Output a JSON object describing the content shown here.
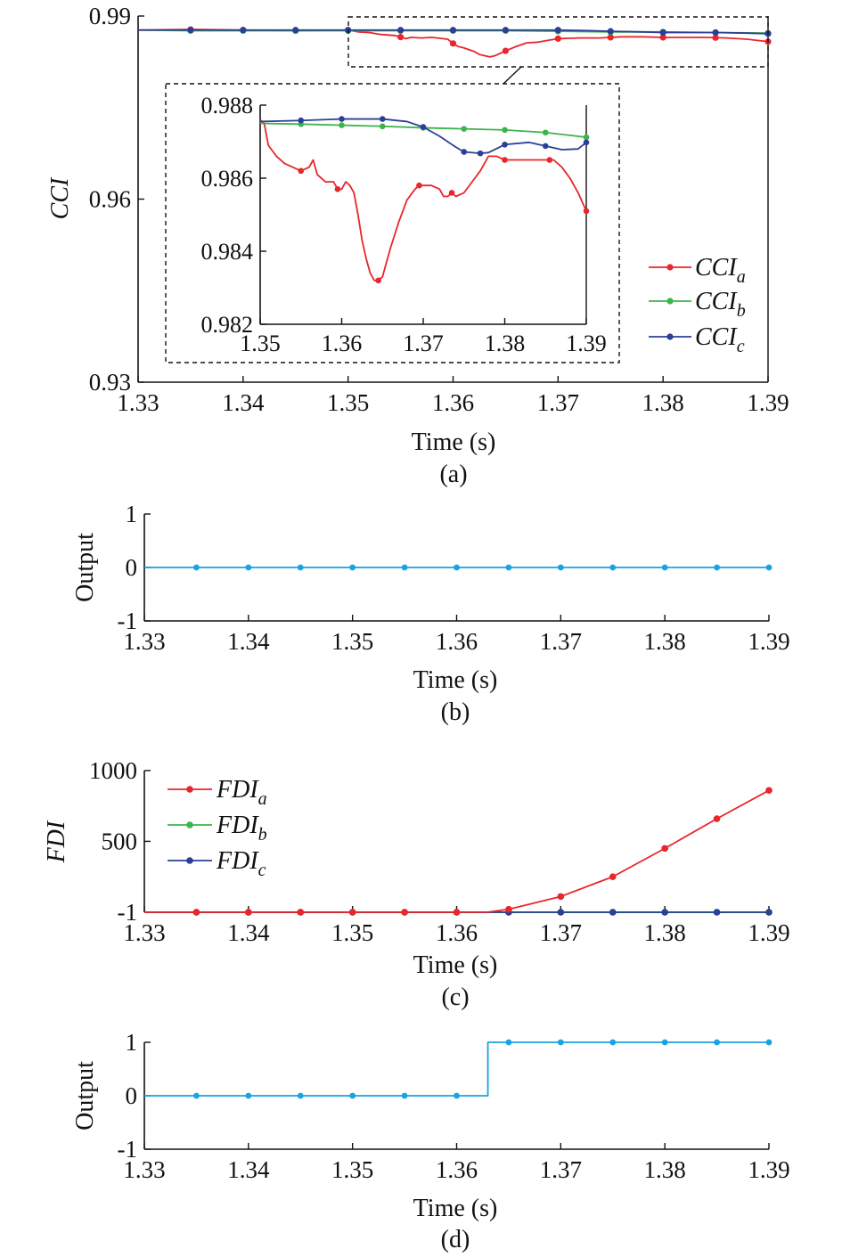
{
  "colors": {
    "a": "#e8262b",
    "b": "#3bb54a",
    "c": "#2b3f97",
    "output": "#1aa3e0",
    "axis": "#111111"
  },
  "chart_data": [
    {
      "id": "a",
      "type": "line",
      "caption": "(a)",
      "xlabel": "Time (s)",
      "ylabel": "CCI",
      "xlim": [
        1.33,
        1.39
      ],
      "ylim": [
        0.93,
        0.99
      ],
      "xticks": [
        "1.33",
        "1.34",
        "1.35",
        "1.36",
        "1.37",
        "1.38",
        "1.39"
      ],
      "yticks": [
        "0.93",
        "0.96",
        "0.99"
      ],
      "legend": {
        "placement": "bottom-right",
        "entries": [
          "CCI_a",
          "CCI_b",
          "CCI_c"
        ]
      },
      "series": [
        {
          "name": "CCI_a",
          "key": "a",
          "x": [
            1.33,
            1.335,
            1.34,
            1.345,
            1.35,
            1.351,
            1.352,
            1.353,
            1.3545,
            1.3555,
            1.356,
            1.357,
            1.358,
            1.3595,
            1.36,
            1.3605,
            1.361,
            1.362,
            1.3625,
            1.3635,
            1.364,
            1.365,
            1.366,
            1.367,
            1.368,
            1.369,
            1.37,
            1.372,
            1.374,
            1.376,
            1.378,
            1.38,
            1.382,
            1.384,
            1.386,
            1.388,
            1.39
          ],
          "y": [
            0.9877,
            0.9878,
            0.9877,
            0.9876,
            0.9877,
            0.9874,
            0.9873,
            0.987,
            0.9868,
            0.9863,
            0.9865,
            0.9864,
            0.9865,
            0.9862,
            0.9855,
            0.985,
            0.9848,
            0.9842,
            0.9837,
            0.9833,
            0.9835,
            0.9843,
            0.985,
            0.9856,
            0.9857,
            0.986,
            0.9863,
            0.9864,
            0.9864,
            0.9866,
            0.9866,
            0.9865,
            0.9865,
            0.9865,
            0.9864,
            0.9862,
            0.9858
          ]
        },
        {
          "name": "CCI_b",
          "key": "b",
          "x": [
            1.33,
            1.335,
            1.34,
            1.345,
            1.35,
            1.355,
            1.36,
            1.365,
            1.37,
            1.375,
            1.38,
            1.385,
            1.39
          ],
          "y": [
            0.9877,
            0.9876,
            0.9876,
            0.9876,
            0.9876,
            0.9876,
            0.9876,
            0.9876,
            0.9875,
            0.9874,
            0.9874,
            0.9873,
            0.9872
          ]
        },
        {
          "name": "CCI_c",
          "key": "c",
          "x": [
            1.33,
            1.335,
            1.34,
            1.345,
            1.35,
            1.355,
            1.36,
            1.365,
            1.37,
            1.373,
            1.375,
            1.378,
            1.38,
            1.382,
            1.385,
            1.388,
            1.39
          ],
          "y": [
            0.9877,
            0.9877,
            0.9877,
            0.9877,
            0.9877,
            0.9877,
            0.9877,
            0.9877,
            0.9877,
            0.9876,
            0.9875,
            0.9874,
            0.9873,
            0.9873,
            0.9873,
            0.9872,
            0.9871
          ]
        }
      ],
      "inset": {
        "xlim": [
          1.35,
          1.39
        ],
        "ylim": [
          0.982,
          0.988
        ],
        "xticks": [
          "1.35",
          "1.36",
          "1.37",
          "1.38",
          "1.39"
        ],
        "yticks": [
          "0.982",
          "0.984",
          "0.986",
          "0.988"
        ],
        "series": [
          {
            "key": "a",
            "x": [
              1.35,
              1.3505,
              1.351,
              1.352,
              1.353,
              1.354,
              1.355,
              1.356,
              1.3565,
              1.357,
              1.358,
              1.359,
              1.3595,
              1.36,
              1.3605,
              1.361,
              1.3615,
              1.362,
              1.3625,
              1.363,
              1.3635,
              1.364,
              1.3645,
              1.365,
              1.3655,
              1.366,
              1.367,
              1.368,
              1.369,
              1.3695,
              1.37,
              1.371,
              1.372,
              1.3725,
              1.373,
              1.3735,
              1.374,
              1.375,
              1.376,
              1.377,
              1.378,
              1.379,
              1.38,
              1.381,
              1.382,
              1.383,
              1.384,
              1.385,
              1.386,
              1.387,
              1.388,
              1.389,
              1.39
            ],
            "y": [
              0.9876,
              0.9875,
              0.9869,
              0.9866,
              0.9864,
              0.9863,
              0.9862,
              0.9863,
              0.9865,
              0.9861,
              0.9859,
              0.9859,
              0.9857,
              0.9857,
              0.9859,
              0.9858,
              0.9856,
              0.985,
              0.9843,
              0.9838,
              0.9834,
              0.9832,
              0.9832,
              0.9833,
              0.9837,
              0.9841,
              0.9848,
              0.9854,
              0.9857,
              0.9858,
              0.9858,
              0.9858,
              0.9857,
              0.9855,
              0.9855,
              0.9856,
              0.9855,
              0.9856,
              0.9859,
              0.9862,
              0.9866,
              0.9866,
              0.9865,
              0.9865,
              0.9865,
              0.9865,
              0.9865,
              0.9865,
              0.9865,
              0.9863,
              0.986,
              0.9856,
              0.9851
            ]
          },
          {
            "key": "b",
            "x": [
              1.35,
              1.355,
              1.36,
              1.365,
              1.37,
              1.375,
              1.38,
              1.385,
              1.39
            ],
            "y": [
              0.9875,
              0.98748,
              0.98745,
              0.98742,
              0.98738,
              0.98735,
              0.98732,
              0.98725,
              0.98712
            ]
          },
          {
            "key": "c",
            "x": [
              1.35,
              1.355,
              1.36,
              1.365,
              1.368,
              1.37,
              1.372,
              1.374,
              1.375,
              1.377,
              1.378,
              1.38,
              1.383,
              1.385,
              1.387,
              1.389,
              1.39
            ],
            "y": [
              0.98755,
              0.98758,
              0.98762,
              0.98762,
              0.98755,
              0.9874,
              0.98715,
              0.98685,
              0.98672,
              0.98668,
              0.9867,
              0.98692,
              0.98698,
              0.98688,
              0.98678,
              0.9868,
              0.98698
            ]
          }
        ]
      }
    },
    {
      "id": "b",
      "type": "line",
      "caption": "(b)",
      "xlabel": "Time (s)",
      "ylabel": "Output",
      "xlim": [
        1.33,
        1.39
      ],
      "ylim": [
        -1,
        1
      ],
      "xticks": [
        "1.33",
        "1.34",
        "1.35",
        "1.36",
        "1.37",
        "1.38",
        "1.39"
      ],
      "yticks": [
        "-1",
        "0",
        "1"
      ],
      "series": [
        {
          "key": "output",
          "x": [
            1.33,
            1.39
          ],
          "y": [
            0,
            0
          ]
        }
      ],
      "markers_x": [
        1.335,
        1.34,
        1.345,
        1.35,
        1.355,
        1.36,
        1.365,
        1.37,
        1.375,
        1.38,
        1.385,
        1.39
      ]
    },
    {
      "id": "c",
      "type": "line",
      "caption": "(c)",
      "xlabel": "Time (s)",
      "ylabel": "FDI",
      "xlim": [
        1.33,
        1.39
      ],
      "ylim": [
        -1,
        1000
      ],
      "xticks": [
        "1.33",
        "1.34",
        "1.35",
        "1.36",
        "1.37",
        "1.38",
        "1.39"
      ],
      "yticks": [
        "-1",
        "500",
        "1000"
      ],
      "legend": {
        "placement": "top-left",
        "entries": [
          "FDI_a",
          "FDI_b",
          "FDI_c"
        ]
      },
      "series": [
        {
          "name": "FDI_a",
          "key": "a",
          "x": [
            1.33,
            1.335,
            1.34,
            1.345,
            1.35,
            1.355,
            1.36,
            1.363,
            1.365,
            1.37,
            1.375,
            1.38,
            1.385,
            1.39
          ],
          "y": [
            -1,
            -1,
            -1,
            -1,
            -1,
            -1,
            -1,
            0,
            20,
            110,
            250,
            450,
            660,
            860
          ]
        },
        {
          "name": "FDI_b",
          "key": "b",
          "x": [
            1.33,
            1.39
          ],
          "y": [
            -1,
            -1
          ]
        },
        {
          "name": "FDI_c",
          "key": "c",
          "x": [
            1.33,
            1.39
          ],
          "y": [
            -1,
            -1
          ]
        }
      ],
      "markers_x": [
        1.335,
        1.34,
        1.345,
        1.35,
        1.355,
        1.36,
        1.365,
        1.37,
        1.375,
        1.38,
        1.385,
        1.39
      ]
    },
    {
      "id": "d",
      "type": "line",
      "caption": "(d)",
      "xlabel": "Time (s)",
      "ylabel": "Output",
      "xlim": [
        1.33,
        1.39
      ],
      "ylim": [
        -1,
        1
      ],
      "xticks": [
        "1.33",
        "1.34",
        "1.35",
        "1.36",
        "1.37",
        "1.38",
        "1.39"
      ],
      "yticks": [
        "-1",
        "0",
        "1"
      ],
      "series": [
        {
          "key": "output",
          "x": [
            1.33,
            1.363,
            1.363,
            1.39
          ],
          "y": [
            0,
            0,
            1,
            1
          ]
        }
      ],
      "markers_x": [
        1.335,
        1.34,
        1.345,
        1.35,
        1.355,
        1.36,
        1.365,
        1.37,
        1.375,
        1.38,
        1.385,
        1.39
      ]
    }
  ]
}
